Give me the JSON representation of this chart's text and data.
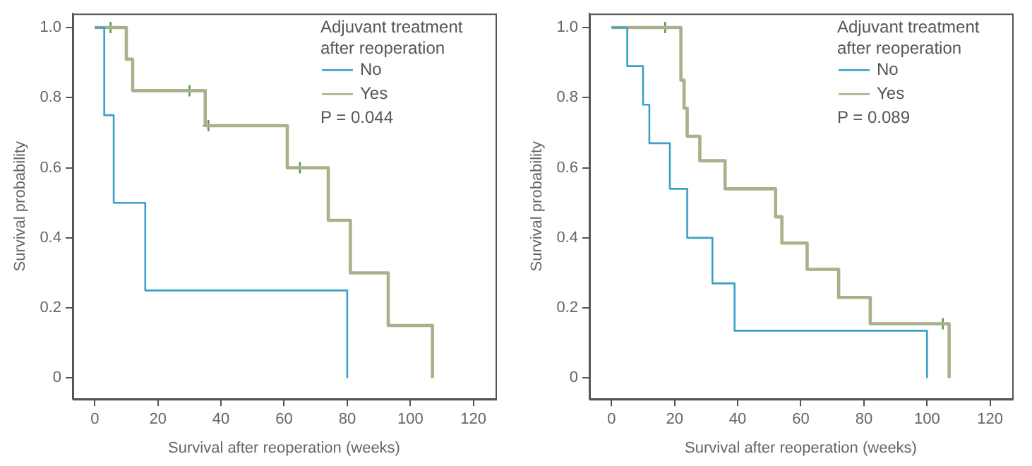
{
  "chart_data": [
    {
      "type": "step",
      "xlabel": "Survival after reoperation (weeks)",
      "ylabel": "Survival probability",
      "legend_title": "Adjuvant treatment after reoperation",
      "legend": "top right",
      "grid": false,
      "annotations": [
        "P = 0.044"
      ],
      "xlim": [
        -7,
        127
      ],
      "xticks": [
        0,
        20,
        40,
        60,
        80,
        100,
        120
      ],
      "ylim": [
        -0.06,
        1.04
      ],
      "yticks": [
        0,
        0.2,
        0.4,
        0.6,
        0.8,
        {
          "value": 1,
          "label": "1.0"
        }
      ],
      "series": [
        {
          "name": "No",
          "color": "#3aa0c8",
          "x": [
            0,
            3,
            6,
            16,
            80
          ],
          "values": [
            1,
            0.75,
            0.5,
            0.25,
            0
          ]
        },
        {
          "name": "Yes",
          "color": "#a9b08a",
          "x": [
            0,
            10,
            12,
            35,
            61,
            74,
            81,
            93,
            107
          ],
          "values": [
            1,
            0.91,
            0.82,
            0.72,
            0.6,
            0.45,
            0.3,
            0.15,
            0
          ]
        },
        {
          "type": "scatter",
          "marker": "cross",
          "color": "#5a9a4a",
          "x": [
            5,
            30,
            36,
            65
          ],
          "values": [
            1,
            0.82,
            0.72,
            0.6
          ]
        }
      ]
    },
    {
      "type": "step",
      "xlabel": "Survival after reoperation (weeks)",
      "ylabel": "Survival probability",
      "legend_title": "Adjuvant treatment after reoperation",
      "legend": "top right",
      "grid": false,
      "annotations": [
        "P = 0.089"
      ],
      "xlim": [
        -7,
        127
      ],
      "xticks": [
        0,
        20,
        40,
        60,
        80,
        100,
        120
      ],
      "ylim": [
        -0.06,
        1.04
      ],
      "yticks": [
        0,
        0.2,
        0.4,
        0.6,
        0.8,
        {
          "value": 1,
          "label": "1.0"
        }
      ],
      "series": [
        {
          "name": "No",
          "color": "#3aa0c8",
          "x": [
            0,
            5,
            10,
            12,
            18.5,
            24,
            32,
            39,
            100
          ],
          "values": [
            1,
            0.89,
            0.78,
            0.67,
            0.54,
            0.4,
            0.27,
            0.135,
            0
          ]
        },
        {
          "name": "Yes",
          "color": "#a9b08a",
          "x": [
            0,
            22,
            23,
            24,
            28,
            36,
            52,
            54,
            62,
            72,
            82,
            107
          ],
          "values": [
            1,
            0.85,
            0.77,
            0.69,
            0.62,
            0.54,
            0.46,
            0.385,
            0.31,
            0.23,
            0.155,
            0
          ]
        },
        {
          "type": "scatter",
          "marker": "cross",
          "color": "#5a9a4a",
          "x": [
            17,
            105
          ],
          "values": [
            1,
            0.155
          ]
        }
      ]
    }
  ]
}
